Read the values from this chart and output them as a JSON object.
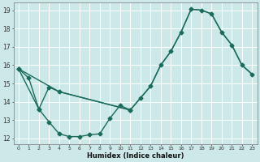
{
  "xlabel": "Humidex (Indice chaleur)",
  "bg_color": "#cce8e8",
  "line_color": "#1a6b5a",
  "grid_color": "#ffffff",
  "xlim": [
    -0.5,
    23.5
  ],
  "ylim": [
    11.7,
    19.4
  ],
  "xticks": [
    0,
    1,
    2,
    3,
    4,
    5,
    6,
    7,
    8,
    9,
    10,
    11,
    12,
    13,
    14,
    15,
    16,
    17,
    18,
    19,
    20,
    21,
    22,
    23
  ],
  "yticks": [
    12,
    13,
    14,
    15,
    16,
    17,
    18,
    19
  ],
  "line1_x": [
    0,
    1,
    2,
    3,
    4,
    5,
    6,
    7,
    8,
    9,
    10,
    11
  ],
  "line1_y": [
    15.8,
    15.3,
    13.6,
    12.9,
    12.25,
    12.1,
    12.1,
    12.2,
    12.25,
    13.1,
    13.8,
    13.55
  ],
  "line2_x": [
    0,
    2,
    3,
    4,
    11,
    12,
    13,
    14,
    15,
    16,
    17,
    18,
    19,
    20,
    21,
    22,
    23
  ],
  "line2_y": [
    15.8,
    13.6,
    14.8,
    14.55,
    13.55,
    14.2,
    14.85,
    16.0,
    16.75,
    17.8,
    19.05,
    19.0,
    18.8,
    17.8,
    17.1,
    16.0,
    15.5
  ],
  "line3_x": [
    0,
    4,
    11,
    12,
    13,
    14,
    15,
    16,
    17,
    18,
    19,
    20,
    21,
    22,
    23
  ],
  "line3_y": [
    15.8,
    14.55,
    13.55,
    14.2,
    14.85,
    16.0,
    16.75,
    17.8,
    19.05,
    19.0,
    18.8,
    17.8,
    17.1,
    16.0,
    15.5
  ],
  "marker": "D",
  "markersize": 2.5,
  "linewidth": 1.0
}
